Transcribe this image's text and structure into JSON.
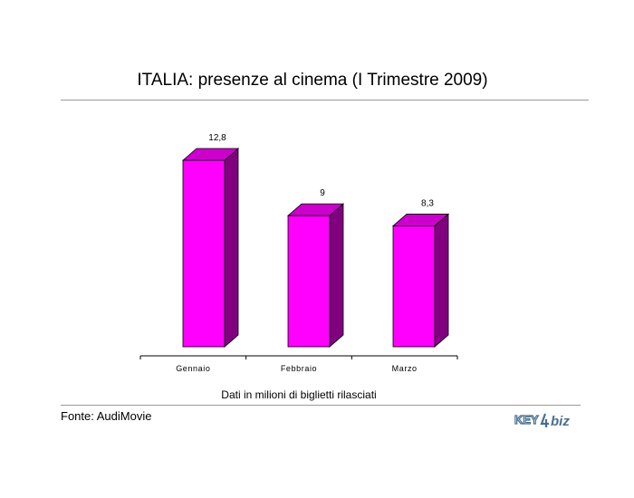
{
  "title": "ITALIA: presenze al cinema (I Trimestre 2009)",
  "caption": "Dati in milioni di biglietti rilasciati",
  "source": "Fonte: AudiMovie",
  "logo": {
    "text_left": "KEY",
    "text_right": "biz",
    "icon": "key4biz-logo"
  },
  "colors": {
    "bar_front": "#ff00ff",
    "bar_side": "#800080",
    "bar_top": "#cc00cc",
    "outline": "#000000",
    "rule": "#9a9a9a",
    "logo": "#4a6f8f"
  },
  "chart_data": {
    "type": "bar",
    "categories": [
      "Gennaio",
      "Febbraio",
      "Marzo"
    ],
    "values": [
      12.8,
      9,
      8.3
    ],
    "value_labels": [
      "12,8",
      "9",
      "8,3"
    ],
    "title": "ITALIA: presenze al cinema (I Trimestre 2009)",
    "xlabel": "",
    "ylabel": "",
    "ylim": [
      0,
      12.8
    ],
    "grid": false,
    "legend": "none",
    "style": "3d-column"
  }
}
